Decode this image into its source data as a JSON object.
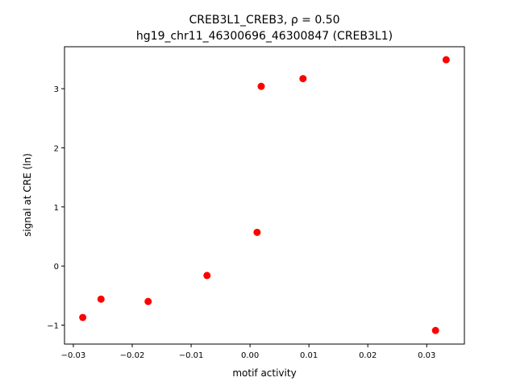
{
  "chart_data": {
    "type": "scatter",
    "title_line1": "CREB3L1_CREB3, ρ = 0.50",
    "title_line2": "hg19_chr11_46300696_46300847 (CREB3L1)",
    "xlabel": "motif activity",
    "ylabel": "signal at CRE (ln)",
    "xlim": [
      -0.0315,
      0.0364
    ],
    "ylim": [
      -1.32,
      3.71
    ],
    "xticks": [
      -0.03,
      -0.02,
      -0.01,
      0.0,
      0.01,
      0.02,
      0.03
    ],
    "xtick_labels": [
      "−0.03",
      "−0.02",
      "−0.01",
      "0.00",
      "0.01",
      "0.02",
      "0.03"
    ],
    "yticks": [
      -1,
      0,
      1,
      2,
      3
    ],
    "ytick_labels": [
      "−1",
      "0",
      "1",
      "2",
      "3"
    ],
    "grid": false,
    "marker_color": "#ff0000",
    "points": [
      {
        "x": -0.0284,
        "y": -0.87
      },
      {
        "x": -0.0253,
        "y": -0.56
      },
      {
        "x": -0.0173,
        "y": -0.6
      },
      {
        "x": -0.0073,
        "y": -0.16
      },
      {
        "x": 0.0012,
        "y": 0.57
      },
      {
        "x": 0.0019,
        "y": 3.04
      },
      {
        "x": 0.009,
        "y": 3.17
      },
      {
        "x": 0.0315,
        "y": -1.09
      },
      {
        "x": 0.0333,
        "y": 3.49
      }
    ]
  }
}
